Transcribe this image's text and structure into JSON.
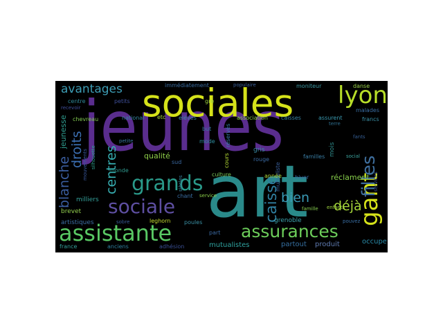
{
  "background": "#000000",
  "words": [
    {
      "text": "jeunes",
      "color": "#5a2d8e"
    },
    {
      "text": "art",
      "color": "#2a8a8a"
    },
    {
      "text": "sociales",
      "color": "#d5e21a"
    },
    {
      "text": "assistante",
      "color": "#59c864"
    },
    {
      "text": "sociale",
      "color": "#5e4fa2"
    },
    {
      "text": "grands",
      "color": "#2a9a8a"
    },
    {
      "text": "assurances",
      "color": "#6ccd5a"
    },
    {
      "text": "gant",
      "color": "#d5e21a"
    },
    {
      "text": "lyon",
      "color": "#b8de29"
    },
    {
      "text": "filles",
      "color": "#3f6f9e"
    },
    {
      "text": "avantages",
      "color": "#3d9db5"
    },
    {
      "text": "droits",
      "color": "#3b6eb0"
    },
    {
      "text": "blanche",
      "color": "#3b5ea0"
    },
    {
      "text": "centres",
      "color": "#36adb0"
    },
    {
      "text": "caisse",
      "color": "#2f7e9f"
    },
    {
      "text": "bien",
      "color": "#3a9ab5"
    },
    {
      "text": "déjà",
      "color": "#a5d63a"
    },
    {
      "text": "jeunesse",
      "color": "#2f9e90"
    },
    {
      "text": "qualité",
      "color": "#8fd04a"
    },
    {
      "text": "réclament",
      "color": "#86cd4a"
    },
    {
      "text": "grenoble",
      "color": "#3da5b0"
    },
    {
      "text": "mutualistes",
      "color": "#2fa3a0"
    },
    {
      "text": "occupe",
      "color": "#2a8caa"
    },
    {
      "text": "partout",
      "color": "#356fa0"
    },
    {
      "text": "produit",
      "color": "#5e7ab0"
    },
    {
      "text": "artistiques",
      "color": "#3d6fa5"
    },
    {
      "text": "brevet",
      "color": "#93d04f"
    },
    {
      "text": "milliers",
      "color": "#34a09a"
    },
    {
      "text": "france",
      "color": "#34a09a"
    },
    {
      "text": "anciens",
      "color": "#2f7f9e"
    },
    {
      "text": "adhésion",
      "color": "#3a4f95"
    },
    {
      "text": "leghorn",
      "color": "#c6dd30"
    },
    {
      "text": "moniteur",
      "color": "#3c98a3"
    },
    {
      "text": "danse",
      "color": "#9bd24a"
    },
    {
      "text": "immédiatement",
      "color": "#3a6ca0"
    },
    {
      "text": "populaire",
      "color": "#3a5f9a"
    },
    {
      "text": "centre",
      "color": "#2f8a9a"
    },
    {
      "text": "petits",
      "color": "#3f4f9a"
    },
    {
      "text": "chevreau",
      "color": "#80c850"
    },
    {
      "text": "national",
      "color": "#34869e"
    },
    {
      "text": "etc",
      "color": "#a8d840"
    },
    {
      "text": "elèves",
      "color": "#3c88a3"
    },
    {
      "text": "association",
      "color": "#8fd04a"
    },
    {
      "text": "caisses",
      "color": "#3a85a3"
    },
    {
      "text": "assurent",
      "color": "#3a9ab0"
    },
    {
      "text": "francs",
      "color": "#3a90a5"
    },
    {
      "text": "malades",
      "color": "#3b6ea3"
    },
    {
      "text": "terre",
      "color": "#2f6f8f"
    },
    {
      "text": "gre",
      "color": "#9fd440"
    },
    {
      "text": "but",
      "color": "#3c7aa3"
    },
    {
      "text": "mode",
      "color": "#2f8ea0"
    },
    {
      "text": "siècles",
      "color": "#3a86a3"
    },
    {
      "text": "cours",
      "color": "#b5db34"
    },
    {
      "text": "réservés",
      "color": "#3a7eb0"
    },
    {
      "text": "mutualiste",
      "color": "#3a5f9a"
    },
    {
      "text": "mois",
      "color": "#2f8a8a"
    },
    {
      "text": "gris",
      "color": "#3a8aa5"
    },
    {
      "text": "rouge",
      "color": "#3b6aa3"
    },
    {
      "text": "familles",
      "color": "#3a7ea5"
    },
    {
      "text": "social",
      "color": "#3da5a0"
    },
    {
      "text": "enfants",
      "color": "#a0d640"
    },
    {
      "text": "services",
      "color": "#3a4f95"
    },
    {
      "text": "fants",
      "color": "#355f95"
    },
    {
      "text": "culture",
      "color": "#7bc85a"
    },
    {
      "text": "année",
      "color": "#b0db3a"
    },
    {
      "text": "hiver",
      "color": "#3b6aa3"
    },
    {
      "text": "famille",
      "color": "#86cc4f"
    },
    {
      "text": "pouvez",
      "color": "#3a6fa5"
    },
    {
      "text": "chant",
      "color": "#3a6fa5"
    },
    {
      "text": "service",
      "color": "#8cd04a"
    },
    {
      "text": "sobre",
      "color": "#3a5f9a"
    },
    {
      "text": "poules",
      "color": "#3a8fa3"
    },
    {
      "text": "sud",
      "color": "#3b6aa3"
    },
    {
      "text": "monde",
      "color": "#2f9a8f"
    },
    {
      "text": "petite",
      "color": "#3a7aa3"
    },
    {
      "text": "mouvements",
      "color": "#3b5aa0"
    },
    {
      "text": "silhouette",
      "color": "#2fa08f"
    },
    {
      "text": "recevoir",
      "color": "#3f4f9a"
    },
    {
      "text": "part",
      "color": "#3c6aa3"
    }
  ]
}
